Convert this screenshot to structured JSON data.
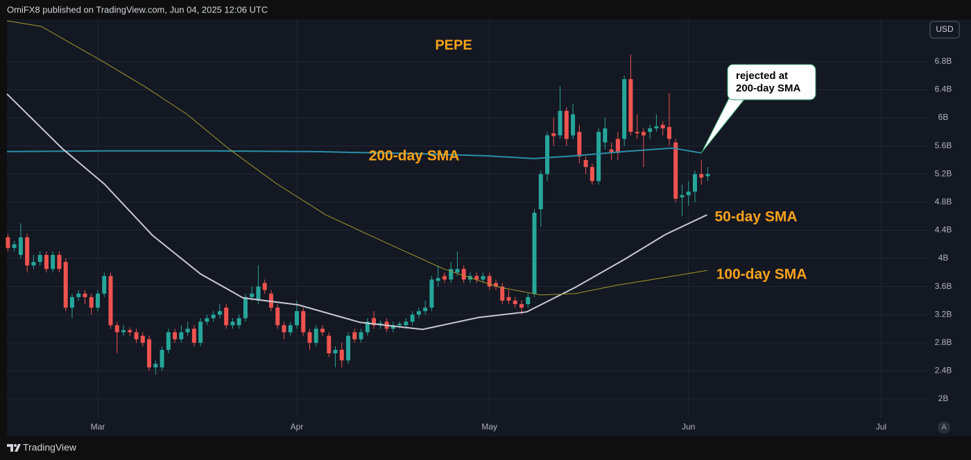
{
  "chart_data": {
    "type": "candlestick",
    "header": "OmiFX8 published on TradingView.com, Jun 04, 2025 12:06 UTC",
    "title": "PEPE",
    "currency": "USD",
    "scale_button": "A",
    "brand": "TradingView",
    "grid": true,
    "up_color": "#26a69a",
    "down_color": "#ef5350",
    "xlim": [
      -0.15,
      143.3
    ],
    "xticks": [
      {
        "value": 14,
        "label": "Mar"
      },
      {
        "value": 45,
        "label": "Apr"
      },
      {
        "value": 75,
        "label": "May"
      },
      {
        "value": 106,
        "label": "Jun"
      },
      {
        "value": 136,
        "label": "Jul"
      }
    ],
    "ylim": [
      1.734,
      7.4
    ],
    "yticks": [
      {
        "value": 2,
        "label": "2B"
      },
      {
        "value": 2.4,
        "label": "2.4B"
      },
      {
        "value": 2.8,
        "label": "2.8B"
      },
      {
        "value": 3.2,
        "label": "3.2B"
      },
      {
        "value": 3.6,
        "label": "3.6B"
      },
      {
        "value": 4,
        "label": "4B"
      },
      {
        "value": 4.4,
        "label": "4.4B"
      },
      {
        "value": 4.8,
        "label": "4.8B"
      },
      {
        "value": 5.2,
        "label": "5.2B"
      },
      {
        "value": 5.6,
        "label": "5.6B"
      },
      {
        "value": 6,
        "label": "6B"
      },
      {
        "value": 6.4,
        "label": "6.4B"
      },
      {
        "value": 6.8,
        "label": "6.8B"
      }
    ],
    "x": [
      0,
      1,
      2,
      3,
      4,
      5,
      6,
      7,
      8,
      9,
      10,
      11,
      12,
      13,
      14,
      15,
      16,
      17,
      18,
      19,
      20,
      21,
      22,
      23,
      24,
      25,
      26,
      27,
      28,
      29,
      30,
      31,
      32,
      33,
      34,
      35,
      36,
      37,
      38,
      39,
      40,
      41,
      42,
      43,
      44,
      45,
      46,
      47,
      48,
      49,
      50,
      51,
      52,
      53,
      54,
      55,
      56,
      57,
      58,
      59,
      60,
      61,
      62,
      63,
      64,
      65,
      66,
      67,
      68,
      69,
      70,
      71,
      72,
      73,
      74,
      75,
      76,
      77,
      78,
      79,
      80,
      81,
      82,
      83,
      84,
      85,
      86,
      87,
      88,
      89,
      90,
      91,
      92,
      93,
      94,
      95,
      96,
      97,
      98,
      99,
      100,
      101,
      102,
      103,
      104,
      105,
      106,
      107,
      108,
      109
    ],
    "open": [
      4.3,
      4.15,
      4.05,
      4.3,
      3.9,
      3.95,
      4.05,
      3.85,
      4.05,
      3.95,
      3.3,
      3.45,
      3.5,
      3.45,
      3.3,
      3.5,
      3.75,
      3.05,
      2.95,
      2.98,
      2.95,
      2.9,
      2.85,
      2.45,
      2.45,
      2.7,
      2.95,
      2.85,
      2.95,
      3.0,
      2.8,
      3.1,
      3.15,
      3.2,
      3.3,
      3.05,
      3.05,
      3.15,
      3.45,
      3.4,
      3.65,
      3.5,
      3.3,
      3.05,
      2.95,
      3.05,
      3.25,
      2.95,
      2.8,
      3.0,
      2.9,
      2.65,
      2.7,
      2.55,
      2.95,
      2.85,
      2.95,
      3.15,
      3.05,
      3.1,
      3.0,
      3.05,
      3.05,
      3.1,
      3.2,
      3.25,
      3.3,
      3.68,
      3.75,
      3.7,
      3.8,
      3.85,
      3.7,
      3.75,
      3.7,
      3.75,
      3.65,
      3.6,
      3.45,
      3.4,
      3.35,
      3.35,
      3.5,
      4.7,
      5.2,
      5.78,
      5.75,
      6.1,
      5.75,
      5.8,
      5.4,
      5.3,
      5.1,
      5.65,
      5.55,
      5.7,
      5.7,
      6.55,
      5.8,
      5.8,
      5.8,
      5.85,
      5.9,
      5.87,
      5.65,
      4.87,
      4.9,
      4.95,
      5.2,
      5.17
    ],
    "high": [
      4.35,
      4.25,
      4.5,
      4.35,
      4.05,
      4.1,
      4.1,
      4.1,
      4.1,
      4.0,
      3.5,
      3.55,
      3.55,
      3.5,
      3.55,
      3.8,
      3.8,
      3.1,
      3.05,
      3.02,
      3.0,
      2.95,
      2.9,
      2.55,
      2.75,
      3.0,
      3.0,
      3.05,
      3.1,
      3.05,
      3.15,
      3.2,
      3.25,
      3.35,
      3.35,
      3.15,
      3.2,
      3.5,
      3.6,
      3.9,
      3.7,
      3.55,
      3.35,
      3.1,
      3.1,
      3.4,
      3.3,
      3.0,
      3.05,
      3.05,
      2.95,
      2.75,
      2.8,
      2.95,
      3.0,
      3.0,
      3.15,
      3.25,
      3.12,
      3.15,
      3.1,
      3.1,
      3.15,
      3.25,
      3.3,
      3.4,
      3.75,
      3.9,
      3.8,
      3.95,
      4.1,
      3.9,
      3.8,
      3.8,
      3.8,
      3.8,
      3.7,
      3.65,
      3.55,
      3.45,
      3.4,
      3.5,
      4.7,
      5.25,
      5.8,
      6.0,
      6.45,
      6.15,
      6.2,
      5.9,
      5.45,
      5.35,
      5.85,
      6.0,
      5.65,
      5.8,
      6.6,
      6.9,
      6.05,
      5.85,
      5.9,
      6.05,
      5.95,
      6.35,
      5.7,
      5.05,
      5.1,
      5.25,
      5.4,
      5.3
    ],
    "low": [
      4.1,
      4.1,
      4.0,
      3.8,
      3.85,
      3.9,
      3.8,
      3.8,
      3.8,
      3.25,
      3.15,
      3.4,
      3.35,
      3.2,
      3.25,
      3.45,
      3.0,
      2.65,
      2.9,
      2.9,
      2.8,
      2.75,
      2.4,
      2.35,
      2.4,
      2.65,
      2.8,
      2.8,
      2.9,
      2.75,
      2.75,
      3.05,
      3.1,
      3.15,
      3.0,
      3.0,
      3.0,
      3.1,
      3.4,
      3.35,
      3.5,
      3.25,
      3.0,
      2.85,
      2.9,
      3.0,
      2.9,
      2.7,
      2.75,
      2.9,
      2.6,
      2.45,
      2.45,
      2.5,
      2.8,
      2.8,
      2.9,
      3.0,
      3.0,
      2.95,
      2.95,
      3.0,
      3.0,
      3.05,
      3.15,
      3.2,
      3.25,
      3.6,
      3.65,
      3.65,
      3.75,
      3.65,
      3.65,
      3.65,
      3.65,
      3.55,
      3.55,
      3.35,
      3.35,
      3.3,
      3.2,
      3.3,
      3.45,
      4.45,
      5.1,
      5.6,
      5.7,
      5.6,
      5.7,
      5.35,
      5.2,
      5.05,
      5.05,
      5.55,
      5.4,
      5.4,
      5.6,
      5.75,
      5.7,
      5.3,
      5.7,
      5.8,
      5.75,
      5.6,
      4.8,
      4.6,
      4.75,
      4.8,
      5.05,
      5.1
    ],
    "close": [
      4.15,
      4.2,
      4.3,
      3.9,
      3.95,
      4.05,
      3.85,
      4.05,
      3.85,
      3.3,
      3.45,
      3.5,
      3.45,
      3.3,
      3.5,
      3.75,
      3.05,
      2.95,
      2.98,
      2.95,
      2.85,
      2.8,
      2.45,
      2.5,
      2.7,
      2.95,
      2.85,
      2.95,
      3.0,
      2.8,
      3.1,
      3.15,
      3.2,
      3.25,
      3.05,
      3.1,
      3.15,
      3.45,
      3.5,
      3.6,
      3.55,
      3.3,
      3.05,
      2.95,
      3.05,
      3.25,
      2.95,
      2.8,
      3.0,
      2.95,
      2.65,
      2.7,
      2.55,
      2.9,
      2.85,
      2.95,
      3.1,
      3.05,
      3.08,
      3.0,
      3.05,
      3.07,
      3.1,
      3.2,
      3.25,
      3.3,
      3.7,
      3.72,
      3.7,
      3.85,
      3.85,
      3.7,
      3.75,
      3.7,
      3.75,
      3.6,
      3.6,
      3.4,
      3.4,
      3.35,
      3.3,
      3.45,
      4.65,
      5.2,
      5.75,
      5.74,
      6.1,
      5.7,
      6.05,
      5.45,
      5.3,
      5.1,
      5.8,
      5.85,
      5.5,
      5.5,
      6.55,
      5.8,
      5.78,
      5.75,
      5.85,
      5.88,
      5.85,
      5.7,
      4.85,
      4.9,
      4.95,
      5.2,
      5.15,
      5.2
    ],
    "series": [
      {
        "name": "200-day SMA",
        "color": "#2a8fa8",
        "x": [
          -0.15,
          15,
          31.2,
          47.4,
          63.6,
          74.4,
          81.9,
          88.4,
          95.9,
          103.5,
          108
        ],
        "values": [
          5.52,
          5.53,
          5.53,
          5.52,
          5.49,
          5.46,
          5.42,
          5.46,
          5.52,
          5.57,
          5.5
        ]
      },
      {
        "name": "50-day SMA",
        "color": "#c9c9d4",
        "x": [
          -0.15,
          8.5,
          15,
          22.5,
          30,
          36.6,
          45.2,
          54.9,
          64.6,
          73.3,
          80.8,
          88.4,
          95.9,
          102.4,
          108.9
        ],
        "values": [
          6.34,
          5.56,
          5.06,
          4.33,
          3.78,
          3.44,
          3.34,
          3.09,
          2.99,
          3.16,
          3.24,
          3.59,
          3.98,
          4.34,
          4.62
        ]
      },
      {
        "name": "100-day SMA",
        "color": "#a69a2a",
        "x": [
          -0.15,
          5.2,
          15,
          21.4,
          27.9,
          34.4,
          41.9,
          49.5,
          59.2,
          67.9,
          76.5,
          83,
          88.4,
          94.9,
          102.4,
          108.9
        ],
        "values": [
          7.38,
          7.3,
          6.79,
          6.44,
          6.05,
          5.56,
          5.06,
          4.62,
          4.21,
          3.85,
          3.59,
          3.48,
          3.5,
          3.62,
          3.73,
          3.83
        ]
      }
    ],
    "annotations": [
      {
        "text": [
          "rejected at",
          "200-day SMA"
        ],
        "x": 108,
        "y": 5.5
      }
    ]
  }
}
